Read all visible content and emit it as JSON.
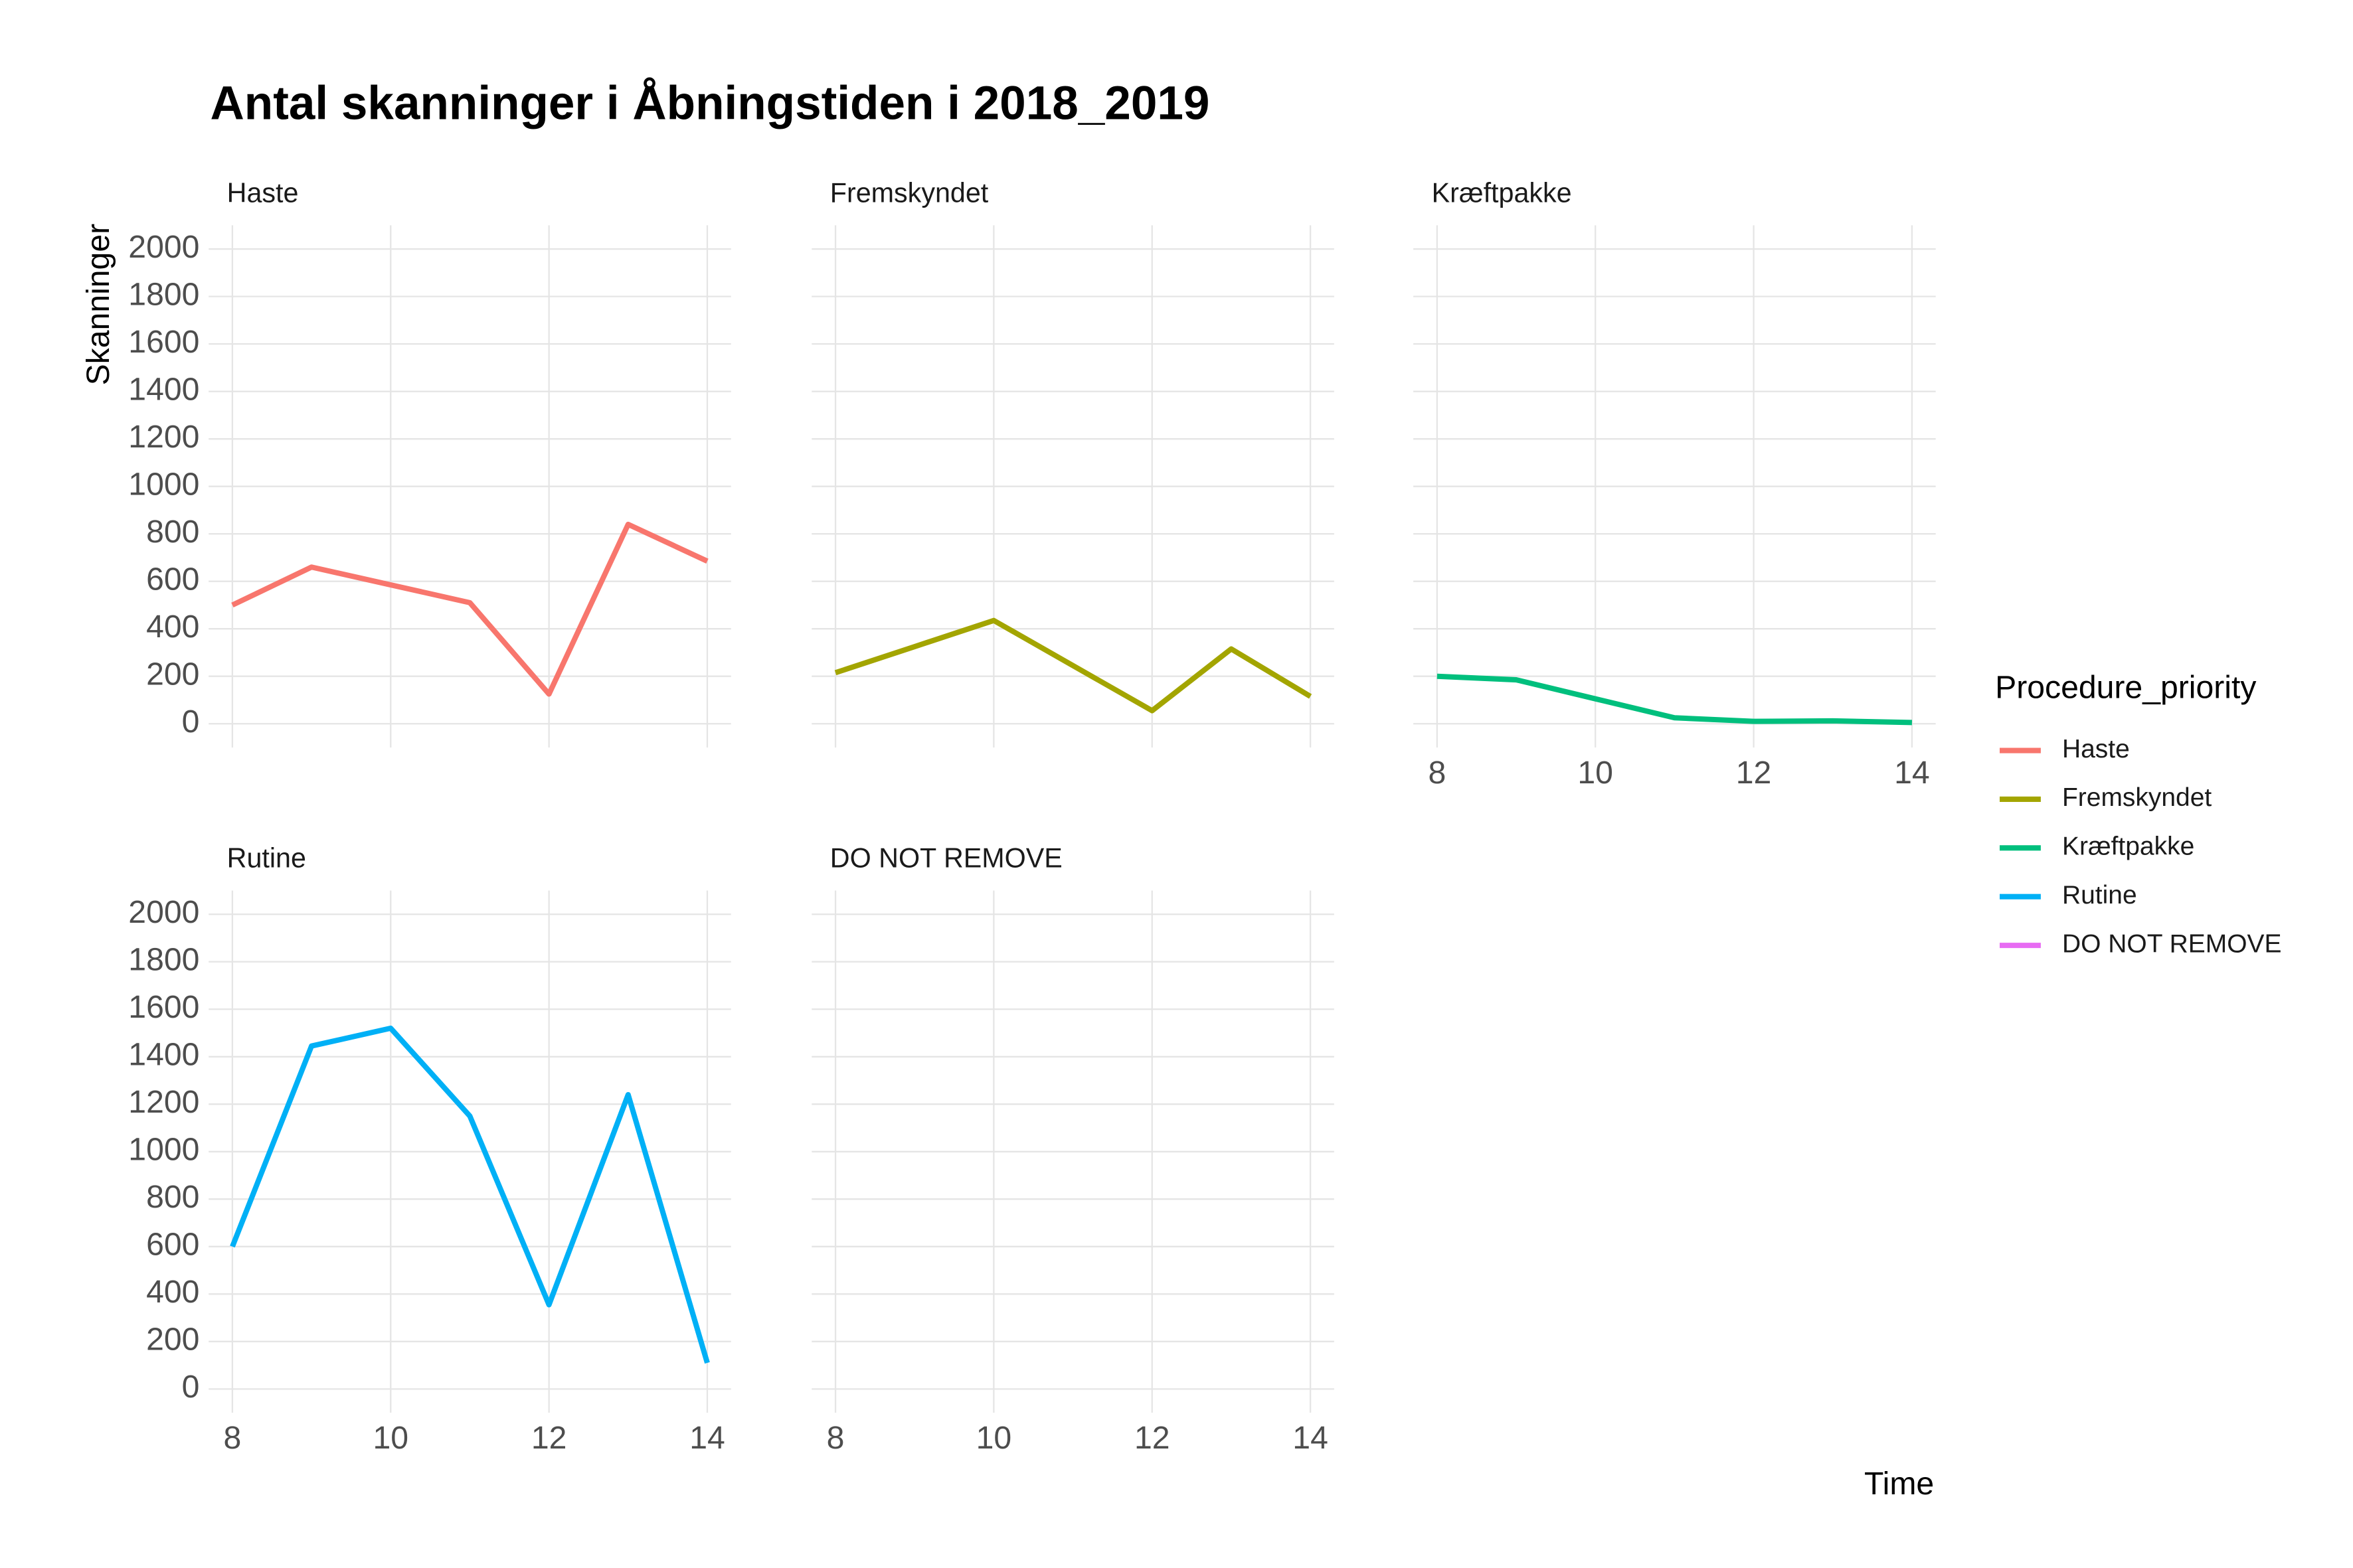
{
  "chart_data": {
    "type": "line",
    "title": "Antal skanninger i Åbningstiden i 2018_2019",
    "x_label": "Time",
    "y_label": "Skanninger",
    "legend_title": "Procedure_priority",
    "x": [
      8,
      9,
      10,
      11,
      12,
      13,
      14
    ],
    "series": [
      {
        "name": "Haste",
        "color": "#f8766d",
        "values": [
          500,
          660,
          585,
          510,
          125,
          840,
          685
        ]
      },
      {
        "name": "Fremskyndet",
        "color": "#a3a500",
        "values": [
          215,
          325,
          435,
          245,
          55,
          315,
          115
        ]
      },
      {
        "name": "Kræftpakke",
        "color": "#00bf7d",
        "values": [
          200,
          185,
          105,
          25,
          10,
          12,
          5
        ]
      },
      {
        "name": "Rutine",
        "color": "#00b0f6",
        "values": [
          600,
          1445,
          1520,
          1150,
          355,
          1240,
          110
        ]
      },
      {
        "name": "DO NOT REMOVE",
        "color": "#e76bf3",
        "values": [
          null,
          null,
          null,
          null,
          null,
          null,
          null
        ]
      }
    ],
    "xlim": [
      7.7,
      14.3
    ],
    "ylim": [
      -100,
      2100
    ],
    "xticks": [
      8,
      10,
      12,
      14
    ],
    "yticks": [
      0,
      200,
      400,
      600,
      800,
      1000,
      1200,
      1400,
      1600,
      1800,
      2000
    ],
    "grid": true,
    "legend": "right"
  }
}
